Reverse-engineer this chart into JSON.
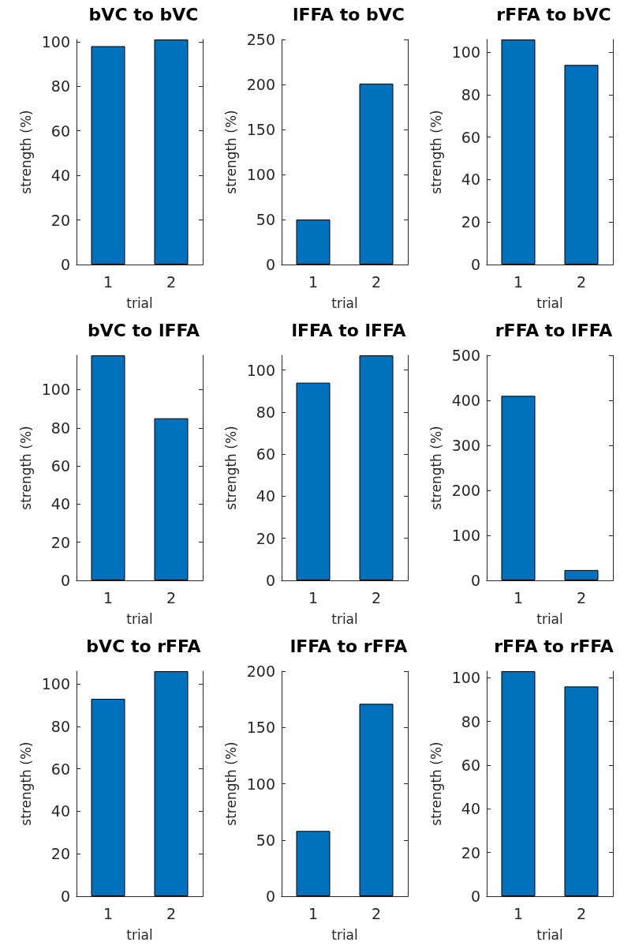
{
  "chart_data": [
    {
      "type": "bar",
      "title": "bVC to bVC",
      "xlabel": "trial",
      "ylabel": "strength (%)",
      "categories": [
        "1",
        "2"
      ],
      "values": [
        98,
        101
      ],
      "color": "#0072bd",
      "ylim": [
        0,
        101
      ],
      "yticks": [
        0,
        20,
        40,
        60,
        80,
        100
      ]
    },
    {
      "type": "bar",
      "title": "lFFA to bVC",
      "xlabel": "trial",
      "ylabel": "strength (%)",
      "categories": [
        "1",
        "2"
      ],
      "values": [
        50,
        201
      ],
      "color": "#0072bd",
      "ylim": [
        0,
        250
      ],
      "yticks": [
        0,
        50,
        100,
        150,
        200,
        250
      ]
    },
    {
      "type": "bar",
      "title": "rFFA to bVC",
      "xlabel": "trial",
      "ylabel": "strength (%)",
      "categories": [
        "1",
        "2"
      ],
      "values": [
        106,
        94
      ],
      "color": "#0072bd",
      "ylim": [
        0,
        106
      ],
      "yticks": [
        0,
        20,
        40,
        60,
        80,
        100
      ]
    },
    {
      "type": "bar",
      "title": "bVC to lFFA",
      "xlabel": "trial",
      "ylabel": "strength (%)",
      "categories": [
        "1",
        "2"
      ],
      "values": [
        118,
        85
      ],
      "color": "#0072bd",
      "ylim": [
        0,
        118
      ],
      "yticks": [
        0,
        20,
        40,
        60,
        80,
        100
      ]
    },
    {
      "type": "bar",
      "title": "lFFA to lFFA",
      "xlabel": "trial",
      "ylabel": "strength (%)",
      "categories": [
        "1",
        "2"
      ],
      "values": [
        94,
        107
      ],
      "color": "#0072bd",
      "ylim": [
        0,
        107
      ],
      "yticks": [
        0,
        20,
        40,
        60,
        80,
        100
      ]
    },
    {
      "type": "bar",
      "title": "rFFA to lFFA",
      "xlabel": "trial",
      "ylabel": "strength (%)",
      "categories": [
        "1",
        "2"
      ],
      "values": [
        410,
        23
      ],
      "color": "#0072bd",
      "ylim": [
        0,
        500
      ],
      "yticks": [
        0,
        100,
        200,
        300,
        400,
        500
      ]
    },
    {
      "type": "bar",
      "title": "bVC to rFFA",
      "xlabel": "trial",
      "ylabel": "strength (%)",
      "categories": [
        "1",
        "2"
      ],
      "values": [
        93,
        106
      ],
      "color": "#0072bd",
      "ylim": [
        0,
        106
      ],
      "yticks": [
        0,
        20,
        40,
        60,
        80,
        100
      ]
    },
    {
      "type": "bar",
      "title": "lFFA to rFFA",
      "xlabel": "trial",
      "ylabel": "strength (%)",
      "categories": [
        "1",
        "2"
      ],
      "values": [
        58,
        171
      ],
      "color": "#0072bd",
      "ylim": [
        0,
        200
      ],
      "yticks": [
        0,
        50,
        100,
        150,
        200
      ]
    },
    {
      "type": "bar",
      "title": "rFFA to rFFA",
      "xlabel": "trial",
      "ylabel": "strength (%)",
      "categories": [
        "1",
        "2"
      ],
      "values": [
        103,
        96
      ],
      "color": "#0072bd",
      "ylim": [
        0,
        103
      ],
      "yticks": [
        0,
        20,
        40,
        60,
        80,
        100
      ]
    }
  ]
}
